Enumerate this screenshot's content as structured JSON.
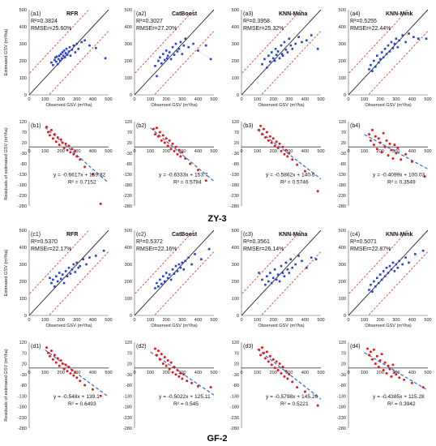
{
  "sections": [
    "ZY-3",
    "GF-2"
  ],
  "labels": {
    "scatter_x": "Observed GSV (m³/ha)",
    "scatter_y": "Estimated GSV (m³/ha)",
    "resid_y": "Residuals of estimated GSV (m³/ha)"
  },
  "colors": {
    "points_scatter": "#2a3fd0",
    "points_resid": "#e01b1b",
    "identity": "#222222",
    "band": "#e02020",
    "trend": "#2a6fd6",
    "fit": "#8fd0e0"
  },
  "chart_data": [
    {
      "id": "a1",
      "section": "ZY-3",
      "type": "scatter",
      "panel": "(a1)",
      "model": "RFR",
      "r2": "R²=0.3824",
      "rmser": "RMSEr=25.60%",
      "xlim": [
        0,
        500
      ],
      "ylim": [
        0,
        500
      ],
      "x": [
        140,
        150,
        160,
        165,
        170,
        175,
        180,
        185,
        190,
        195,
        200,
        205,
        210,
        215,
        220,
        225,
        230,
        235,
        240,
        250,
        255,
        260,
        270,
        280,
        290,
        300,
        310,
        330,
        350,
        380,
        420,
        480
      ],
      "y": [
        190,
        175,
        205,
        220,
        195,
        225,
        180,
        210,
        230,
        200,
        240,
        215,
        250,
        230,
        260,
        220,
        245,
        270,
        235,
        255,
        280,
        230,
        265,
        290,
        250,
        300,
        270,
        310,
        320,
        290,
        275,
        215
      ]
    },
    {
      "id": "a2",
      "section": "ZY-3",
      "type": "scatter",
      "panel": "(a2)",
      "model": "CatBoost",
      "r2": "R²=0.3027",
      "rmser": "RMSEr=27.20%",
      "xlim": [
        0,
        500
      ],
      "ylim": [
        0,
        500
      ],
      "x": [
        130,
        140,
        150,
        160,
        170,
        180,
        190,
        200,
        205,
        210,
        220,
        230,
        240,
        250,
        260,
        270,
        280,
        290,
        300,
        310,
        320,
        340,
        370,
        400,
        450,
        480
      ],
      "y": [
        170,
        110,
        200,
        220,
        185,
        240,
        205,
        260,
        215,
        230,
        250,
        210,
        280,
        235,
        300,
        255,
        270,
        310,
        240,
        290,
        330,
        280,
        300,
        260,
        290,
        210
      ]
    },
    {
      "id": "a3",
      "section": "ZY-3",
      "type": "scatter",
      "panel": "(a3)",
      "model": "KNN-Maha",
      "r2": "R²=0.3958",
      "rmser": "RMSEr=25.32%",
      "xlim": [
        0,
        500
      ],
      "ylim": [
        0,
        500
      ],
      "x": [
        130,
        145,
        160,
        170,
        180,
        190,
        200,
        210,
        215,
        220,
        230,
        240,
        250,
        255,
        260,
        270,
        280,
        290,
        300,
        310,
        320,
        340,
        360,
        380,
        410,
        440,
        480
      ],
      "y": [
        180,
        210,
        160,
        230,
        195,
        250,
        215,
        200,
        270,
        235,
        255,
        215,
        290,
        240,
        230,
        310,
        265,
        250,
        330,
        290,
        270,
        300,
        340,
        310,
        320,
        350,
        270
      ]
    },
    {
      "id": "a4",
      "section": "ZY-3",
      "type": "scatter",
      "panel": "(a4)",
      "model": "KNN-Mink",
      "r2": "R²=0.5255",
      "rmser": "RMSEr=22.44%",
      "xlim": [
        0,
        500
      ],
      "ylim": [
        0,
        500
      ],
      "x": [
        130,
        140,
        150,
        160,
        170,
        180,
        190,
        200,
        210,
        220,
        230,
        240,
        250,
        260,
        270,
        280,
        290,
        300,
        310,
        320,
        340,
        360,
        380,
        410,
        440,
        490
      ],
      "y": [
        150,
        175,
        140,
        200,
        165,
        230,
        190,
        210,
        250,
        220,
        270,
        240,
        290,
        255,
        310,
        275,
        300,
        330,
        280,
        320,
        350,
        310,
        360,
        340,
        330,
        330
      ]
    },
    {
      "id": "b1",
      "section": "ZY-3",
      "type": "scatter",
      "panel": "(b1)",
      "equation": "y = -0.6617x + 159.82",
      "r2": "R² = 0.7152",
      "xlim": [
        0,
        500
      ],
      "ylim": [
        -280,
        120
      ],
      "trend": [
        -0.6617,
        159.82
      ],
      "x": [
        110,
        120,
        130,
        140,
        150,
        160,
        170,
        180,
        190,
        200,
        210,
        220,
        230,
        240,
        250,
        260,
        270,
        280,
        290,
        300,
        320,
        350,
        400,
        450
      ],
      "y": [
        95,
        70,
        55,
        80,
        40,
        60,
        25,
        45,
        10,
        35,
        20,
        -5,
        15,
        -15,
        5,
        -25,
        -10,
        -35,
        -20,
        -45,
        -60,
        -95,
        -130,
        -270
      ]
    },
    {
      "id": "b2",
      "section": "ZY-3",
      "type": "scatter",
      "panel": "(b2)",
      "equation": "y = -0.6333x + 153.7",
      "r2": "R² = 0.5784",
      "xlim": [
        0,
        500
      ],
      "ylim": [
        -280,
        120
      ],
      "trend": [
        -0.6333,
        153.7
      ],
      "x": [
        120,
        130,
        140,
        150,
        160,
        170,
        180,
        190,
        200,
        210,
        220,
        230,
        240,
        250,
        260,
        270,
        280,
        290,
        300,
        320,
        350,
        400,
        450
      ],
      "y": [
        85,
        60,
        90,
        50,
        70,
        30,
        55,
        20,
        40,
        5,
        30,
        -10,
        15,
        -20,
        0,
        -35,
        -15,
        -45,
        -25,
        -55,
        -80,
        -110,
        -160
      ]
    },
    {
      "id": "b3",
      "section": "ZY-3",
      "type": "scatter",
      "panel": "(b3)",
      "equation": "y = -0.5862x + 140.6",
      "r2": "R² = 0.5746",
      "xlim": [
        0,
        500
      ],
      "ylim": [
        -280,
        120
      ],
      "trend": [
        -0.5862,
        140.6
      ],
      "x": [
        110,
        120,
        130,
        140,
        150,
        160,
        170,
        180,
        190,
        200,
        210,
        220,
        230,
        240,
        250,
        260,
        270,
        280,
        290,
        300,
        320,
        350,
        400,
        480
      ],
      "y": [
        80,
        100,
        60,
        85,
        45,
        70,
        30,
        50,
        20,
        40,
        5,
        25,
        -5,
        15,
        -20,
        0,
        -35,
        -15,
        -45,
        -30,
        -60,
        -85,
        -115,
        -210
      ]
    },
    {
      "id": "b4",
      "section": "ZY-3",
      "type": "scatter",
      "panel": "(b4)",
      "equation": "y = -0.4099x + 100.03",
      "r2": "R² = 0.3549",
      "xlim": [
        0,
        500
      ],
      "ylim": [
        -280,
        120
      ],
      "trend": [
        -0.4099,
        100.03
      ],
      "x": [
        130,
        140,
        150,
        160,
        170,
        180,
        190,
        200,
        210,
        220,
        230,
        240,
        250,
        260,
        270,
        280,
        290,
        300,
        310,
        330,
        360,
        400,
        480
      ],
      "y": [
        60,
        30,
        80,
        10,
        50,
        -10,
        40,
        20,
        -25,
        65,
        0,
        30,
        -40,
        15,
        -15,
        -55,
        10,
        -30,
        -5,
        -60,
        -35,
        -70,
        -140
      ]
    },
    {
      "id": "c1",
      "section": "GF-2",
      "type": "scatter",
      "panel": "(c1)",
      "model": "RFR",
      "r2": "R²=0.5370",
      "rmser": "RMSEr=22.17%",
      "xlim": [
        0,
        500
      ],
      "ylim": [
        0,
        500
      ],
      "x": [
        130,
        140,
        150,
        160,
        170,
        180,
        190,
        200,
        210,
        220,
        230,
        240,
        250,
        260,
        270,
        280,
        290,
        300,
        310,
        320,
        340,
        360,
        380,
        420,
        470
      ],
      "y": [
        220,
        190,
        210,
        170,
        230,
        200,
        250,
        215,
        240,
        190,
        260,
        230,
        280,
        245,
        270,
        300,
        255,
        310,
        280,
        290,
        330,
        300,
        340,
        350,
        380
      ]
    },
    {
      "id": "c2",
      "section": "GF-2",
      "type": "scatter",
      "panel": "(c2)",
      "model": "CatBoost",
      "r2": "R²=0.5372",
      "rmser": "RMSEr=22.16%",
      "xlim": [
        0,
        500
      ],
      "ylim": [
        0,
        500
      ],
      "x": [
        130,
        140,
        150,
        160,
        170,
        180,
        190,
        200,
        210,
        220,
        230,
        240,
        250,
        260,
        270,
        280,
        290,
        300,
        310,
        320,
        340,
        360,
        380,
        420,
        470
      ],
      "y": [
        160,
        190,
        170,
        210,
        185,
        230,
        200,
        250,
        220,
        240,
        210,
        270,
        245,
        290,
        260,
        300,
        280,
        310,
        270,
        320,
        340,
        300,
        360,
        330,
        390
      ]
    },
    {
      "id": "c3",
      "section": "GF-2",
      "type": "scatter",
      "panel": "(c3)",
      "model": "KNN-Maha",
      "r2": "R²=0.3561",
      "rmser": "RMSEr=26.14%",
      "xlim": [
        0,
        500
      ],
      "ylim": [
        0,
        500
      ],
      "x": [
        110,
        130,
        150,
        160,
        170,
        180,
        190,
        200,
        210,
        220,
        230,
        240,
        250,
        260,
        270,
        280,
        290,
        300,
        310,
        320,
        340,
        360,
        380,
        410,
        440,
        470
      ],
      "y": [
        250,
        210,
        180,
        230,
        200,
        250,
        190,
        220,
        270,
        210,
        240,
        200,
        290,
        250,
        230,
        310,
        270,
        250,
        330,
        280,
        300,
        350,
        320,
        280,
        340,
        330
      ]
    },
    {
      "id": "c4",
      "section": "GF-2",
      "type": "scatter",
      "panel": "(c4)",
      "model": "KNN-Mink",
      "r2": "R²=0.5071",
      "rmser": "RMSEr=22.87%",
      "xlim": [
        0,
        500
      ],
      "ylim": [
        0,
        500
      ],
      "x": [
        130,
        140,
        150,
        160,
        170,
        180,
        190,
        200,
        210,
        220,
        230,
        240,
        250,
        260,
        270,
        280,
        290,
        300,
        310,
        320,
        340,
        360,
        380,
        420,
        470
      ],
      "y": [
        150,
        180,
        140,
        200,
        170,
        220,
        190,
        240,
        210,
        260,
        230,
        280,
        250,
        290,
        270,
        310,
        260,
        300,
        280,
        320,
        300,
        340,
        310,
        360,
        380
      ]
    },
    {
      "id": "d1",
      "section": "GF-2",
      "type": "scatter",
      "panel": "(d1)",
      "equation": "y = -0.548x + 139.1",
      "r2": "R² = 0.6493",
      "xlim": [
        0,
        500
      ],
      "ylim": [
        -280,
        120
      ],
      "trend": [
        -0.548,
        139.1
      ],
      "x": [
        110,
        120,
        130,
        140,
        150,
        160,
        170,
        180,
        190,
        200,
        210,
        220,
        230,
        240,
        250,
        260,
        270,
        280,
        290,
        300,
        320,
        350,
        400,
        450
      ],
      "y": [
        95,
        70,
        55,
        80,
        40,
        60,
        25,
        45,
        10,
        35,
        20,
        -5,
        15,
        -15,
        5,
        -25,
        -10,
        -35,
        -20,
        -45,
        -60,
        -80,
        -100,
        -130
      ]
    },
    {
      "id": "d2",
      "section": "GF-2",
      "type": "scatter",
      "panel": "(d2)",
      "equation": "y = -0.5022x + 125.11",
      "r2": "R² = 0.545",
      "xlim": [
        0,
        500
      ],
      "ylim": [
        -280,
        120
      ],
      "trend": [
        -0.5022,
        125.11
      ],
      "x": [
        130,
        140,
        150,
        160,
        170,
        180,
        190,
        200,
        210,
        220,
        230,
        240,
        250,
        260,
        270,
        280,
        290,
        300,
        310,
        330,
        360,
        400,
        480
      ],
      "y": [
        90,
        60,
        80,
        40,
        65,
        20,
        50,
        10,
        35,
        -5,
        25,
        -20,
        5,
        -30,
        -10,
        -40,
        -25,
        -50,
        -30,
        -60,
        -70,
        -85,
        -90
      ]
    },
    {
      "id": "d3",
      "section": "GF-2",
      "type": "scatter",
      "panel": "(d3)",
      "equation": "y = -0.5798x + 145.26",
      "r2": "R² = 0.5221",
      "xlim": [
        0,
        500
      ],
      "ylim": [
        -280,
        120
      ],
      "trend": [
        -0.5798,
        145.26
      ],
      "x": [
        110,
        120,
        130,
        140,
        150,
        160,
        170,
        180,
        190,
        200,
        210,
        220,
        230,
        240,
        250,
        260,
        270,
        280,
        290,
        300,
        320,
        350,
        400,
        480
      ],
      "y": [
        85,
        60,
        95,
        70,
        45,
        75,
        30,
        55,
        15,
        40,
        0,
        30,
        -10,
        20,
        -25,
        5,
        -40,
        -15,
        -50,
        -30,
        -65,
        -90,
        -110,
        -175
      ]
    },
    {
      "id": "d4",
      "section": "GF-2",
      "type": "scatter",
      "panel": "(d4)",
      "equation": "y = -0.4385x + 115.28",
      "r2": "R² = 0.3942",
      "xlim": [
        0,
        500
      ],
      "ylim": [
        -280,
        120
      ],
      "trend": [
        -0.4385,
        115.28
      ],
      "x": [
        120,
        130,
        140,
        150,
        160,
        170,
        180,
        190,
        200,
        210,
        220,
        230,
        240,
        250,
        260,
        270,
        280,
        290,
        300,
        320,
        350,
        400,
        470
      ],
      "y": [
        90,
        60,
        75,
        40,
        85,
        20,
        55,
        5,
        35,
        65,
        -10,
        25,
        -25,
        10,
        -5,
        -40,
        15,
        -20,
        -30,
        -45,
        -55,
        -70,
        -90
      ]
    }
  ]
}
